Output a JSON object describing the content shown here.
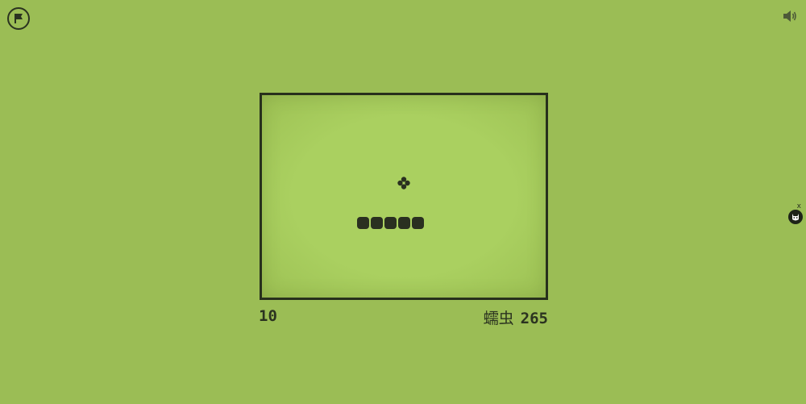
{
  "header": {
    "flag_icon": "flag-icon",
    "sound_icon": "speaker-icon"
  },
  "game": {
    "score": "10",
    "high_score_label": "蠕虫",
    "high_score": "265",
    "snake_segments": 5,
    "food_icon": "flower-food-icon"
  },
  "side_widget": {
    "close_label": "x",
    "avatar_icon": "cat-avatar-icon"
  },
  "colors": {
    "background": "#9bbd55",
    "board": "#aad060",
    "ink": "#2b3320"
  }
}
